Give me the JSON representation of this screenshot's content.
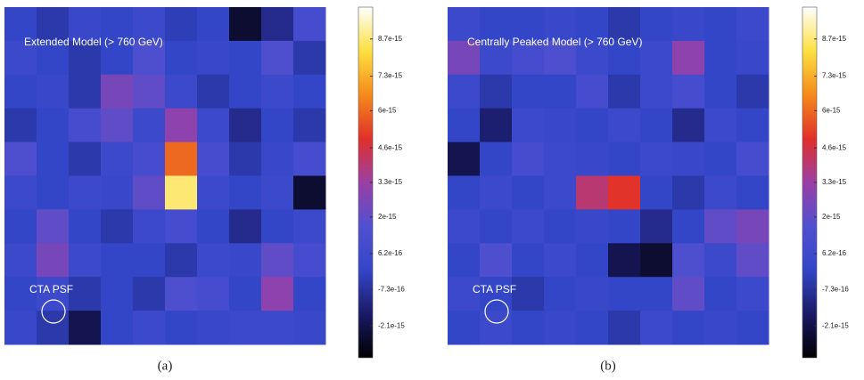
{
  "chart_data": [
    {
      "type": "heatmap",
      "title": "Extended Model (> 760 GeV)",
      "annotation": "CTA PSF",
      "caption": "(a)",
      "colormap": [
        "#000000",
        "#1a1a66",
        "#3346c8",
        "#5050d0",
        "#9b3fa5",
        "#e0302a",
        "#f58a1a",
        "#fde040",
        "#ffffff"
      ],
      "zlim": [
        -3.3e-15,
        9.9e-15
      ],
      "zticks": [
        8.7e-15,
        7.3e-15,
        6e-15,
        4.6e-15,
        3.3e-15,
        2e-15,
        6.2e-16,
        -7.3e-16,
        -2.1e-15
      ],
      "z": [
        [
          0,
          -5e-16,
          3e-16,
          0,
          5e-16,
          -3e-16,
          0,
          -2.5e-15,
          -1e-15,
          1e-15
        ],
        [
          5e-16,
          0,
          -5e-16,
          0,
          1.5e-15,
          0,
          3e-16,
          0,
          1.5e-15,
          -5e-16
        ],
        [
          0,
          3e-16,
          -5e-16,
          2.5e-15,
          2e-15,
          5e-16,
          -5e-16,
          0,
          5e-16,
          0
        ],
        [
          -5e-16,
          0,
          1e-15,
          2e-15,
          5e-16,
          3e-15,
          5e-16,
          -1e-15,
          0,
          -5e-16
        ],
        [
          1.5e-15,
          0,
          -5e-16,
          5e-16,
          1e-15,
          6e-15,
          1e-15,
          -5e-16,
          3e-16,
          1e-15
        ],
        [
          5e-16,
          0,
          5e-16,
          3e-16,
          2e-15,
          8.7e-15,
          5e-16,
          0,
          5e-16,
          -2.5e-15
        ],
        [
          0,
          2e-15,
          0,
          -5e-16,
          5e-16,
          1e-15,
          0,
          -1e-15,
          0,
          5e-16
        ],
        [
          5e-16,
          2.5e-15,
          5e-16,
          0,
          0,
          -5e-16,
          5e-16,
          3e-16,
          2e-15,
          1e-15
        ],
        [
          0,
          5e-16,
          -5e-16,
          0,
          -5e-16,
          1.5e-15,
          1e-15,
          0,
          3e-15,
          0
        ],
        [
          3e-16,
          -5e-16,
          -2e-15,
          0,
          5e-16,
          0,
          3e-16,
          5e-16,
          5e-16,
          3e-16
        ]
      ]
    },
    {
      "type": "heatmap",
      "title": "Centrally Peaked Model (> 760 GeV)",
      "annotation": "CTA PSF",
      "caption": "(b)",
      "colormap": [
        "#000000",
        "#1a1a66",
        "#3346c8",
        "#5050d0",
        "#9b3fa5",
        "#e0302a",
        "#f58a1a",
        "#fde040",
        "#ffffff"
      ],
      "zlim": [
        -3.3e-15,
        9.9e-15
      ],
      "zticks": [
        8.7e-15,
        7.3e-15,
        6e-15,
        4.6e-15,
        3.3e-15,
        2e-15,
        6.2e-16,
        -7.3e-16,
        -2.1e-15
      ],
      "z": [
        [
          5e-16,
          0,
          0,
          3e-16,
          0,
          -5e-16,
          0,
          3e-16,
          0,
          5e-16
        ],
        [
          2.5e-15,
          5e-16,
          1e-15,
          1.5e-15,
          5e-16,
          0,
          5e-16,
          3e-15,
          0,
          3e-16
        ],
        [
          5e-16,
          -5e-16,
          0,
          0,
          1e-15,
          -5e-16,
          5e-16,
          1e-15,
          0,
          -5e-16
        ],
        [
          0,
          -1.5e-15,
          5e-16,
          3e-16,
          0,
          5e-16,
          0,
          -1e-15,
          5e-16,
          0
        ],
        [
          -2e-15,
          0,
          1e-15,
          5e-16,
          3e-16,
          0,
          5e-16,
          3e-16,
          0,
          1e-15
        ],
        [
          0,
          5e-16,
          0,
          5e-16,
          4e-15,
          5e-15,
          0,
          -5e-16,
          5e-16,
          0
        ],
        [
          5e-16,
          0,
          5e-16,
          0,
          3e-16,
          0,
          -1e-15,
          0,
          2e-15,
          2.5e-15
        ],
        [
          0,
          1.5e-15,
          0,
          5e-16,
          0,
          -2e-15,
          -2.5e-15,
          1.5e-15,
          5e-16,
          2e-15
        ],
        [
          5e-16,
          0,
          -5e-16,
          0,
          3e-16,
          0,
          0,
          2e-15,
          0,
          5e-16
        ],
        [
          0,
          5e-16,
          0,
          3e-16,
          0,
          -5e-16,
          5e-16,
          0,
          3e-16,
          0
        ]
      ]
    }
  ]
}
